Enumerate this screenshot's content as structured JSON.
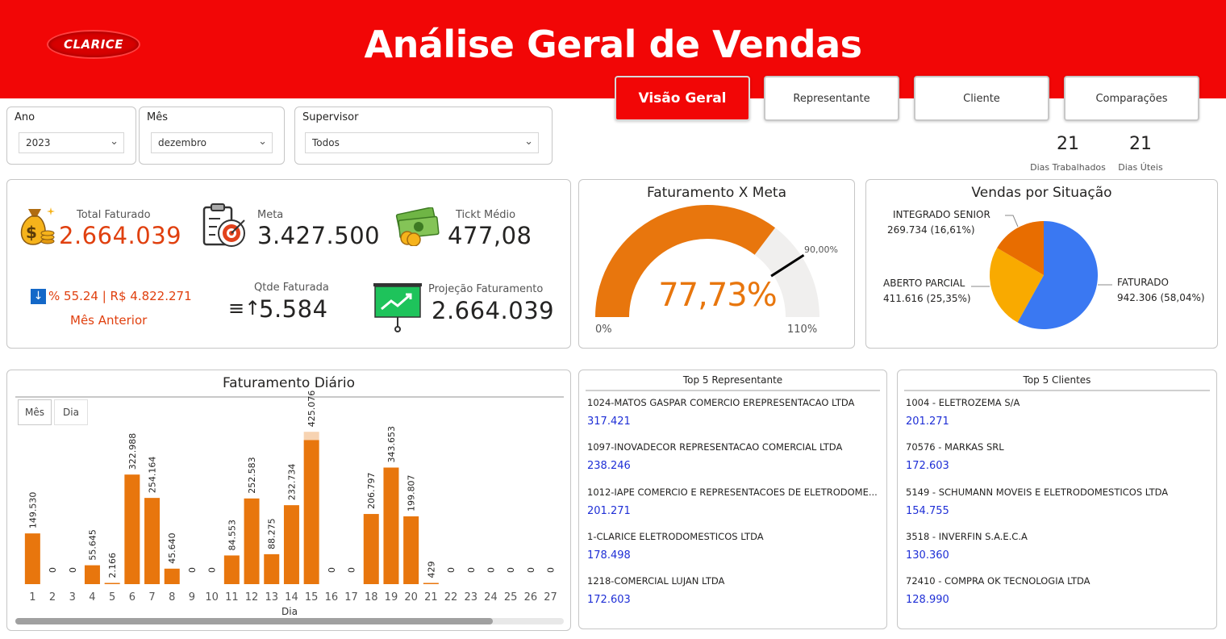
{
  "header": {
    "logo_text": "CLARICE",
    "title": "Análise Geral de Vendas"
  },
  "nav": {
    "visao_geral": "Visão Geral",
    "representante": "Representante",
    "cliente": "Cliente",
    "comparacoes": "Comparações"
  },
  "filters": {
    "ano": {
      "label": "Ano",
      "value": "2023"
    },
    "mes": {
      "label": "Mês",
      "value": "dezembro"
    },
    "supervisor": {
      "label": "Supervisor",
      "value": "Todos"
    }
  },
  "dias": {
    "trabalhados_value": "21",
    "trabalhados_label": "Dias Trabalhados",
    "uteis_value": "21",
    "uteis_label": "Dias Úteis"
  },
  "kpis": {
    "total_faturado_label": "Total Faturado",
    "total_faturado_value": "2.664.039",
    "meta_label": "Meta",
    "meta_value": "3.427.500",
    "ticket_label": "Tickt Médio",
    "ticket_value": "477,08",
    "mes_anterior_value": "% 55.24 | R$ 4.822.271",
    "mes_anterior_label": "Mês Anterior",
    "qtde_label": "Qtde Faturada",
    "qtde_value": "5.584",
    "projecao_label": "Projeção Faturamento",
    "projecao_value": "2.664.039"
  },
  "gauge": {
    "title": "Faturamento X Meta",
    "value_pct": 77.73,
    "value_label": "77,73%",
    "target_pct": 90,
    "target_label": "90,00%",
    "min_label": "0%",
    "max_label": "110%",
    "max": 110
  },
  "pie": {
    "title": "Vendas por Situação",
    "slices": [
      {
        "name": "FATURADO",
        "label": "942.306 (58,04%)",
        "value": 942306,
        "color": "#3a78f2"
      },
      {
        "name": "ABERTO PARCIAL",
        "label": "411.616 (25,35%)",
        "value": 411616,
        "color": "#f9aa00"
      },
      {
        "name": "INTEGRADO SENIOR",
        "label": "269.734 (16,61%)",
        "value": 269734,
        "color": "#e86d00"
      }
    ]
  },
  "daily": {
    "title": "Faturamento Diário",
    "btn_mes": "Mês",
    "btn_dia": "Dia",
    "xlabel": "Dia"
  },
  "chart_data": {
    "type": "bar",
    "title": "Faturamento Diário",
    "xlabel": "Dia",
    "ylabel": "",
    "categories": [
      "1",
      "2",
      "3",
      "4",
      "5",
      "6",
      "7",
      "8",
      "9",
      "10",
      "11",
      "12",
      "13",
      "14",
      "15",
      "16",
      "17",
      "18",
      "19",
      "20",
      "21",
      "22",
      "23",
      "24",
      "25",
      "26",
      "27"
    ],
    "values": [
      149530,
      0,
      0,
      55645,
      2166,
      322988,
      254164,
      45640,
      0,
      0,
      84553,
      252583,
      88275,
      232734,
      425076,
      0,
      0,
      206797,
      343653,
      199807,
      429,
      0,
      0,
      0,
      0,
      0,
      0
    ],
    "labels": [
      "149.530",
      "0",
      "0",
      "55.645",
      "2.166",
      "322.988",
      "254.164",
      "45.640",
      "0",
      "0",
      "84.553",
      "252.583",
      "88.275",
      "232.734",
      "425.076",
      "0",
      "0",
      "206.797",
      "343.653",
      "199.807",
      "429",
      "0",
      "0",
      "0",
      "0",
      "0",
      "0"
    ],
    "highlight_index": 14,
    "highlight_extra": 100000,
    "color": "#e8760d",
    "highlight_color": "#f7d3b2",
    "ylim": [
      0,
      440000
    ]
  },
  "top_rep": {
    "title": "Top 5 Representante",
    "items": [
      {
        "name": "1024-MATOS GASPAR COMERCIO EREPRESENTACAO LTDA",
        "value": "317.421"
      },
      {
        "name": "1097-INOVADECOR REPRESENTACAO COMERCIAL LTDA",
        "value": "238.246"
      },
      {
        "name": "1012-IAPE COMERCIO E REPRESENTACOES DE ELETRODOME...",
        "value": "201.271"
      },
      {
        "name": "1-CLARICE ELETRODOMESTICOS LTDA",
        "value": "178.498"
      },
      {
        "name": "1218-COMERCIAL LUJAN LTDA",
        "value": "172.603"
      }
    ]
  },
  "top_cli": {
    "title": "Top 5 Clientes",
    "items": [
      {
        "name": "1004 - ELETROZEMA S/A",
        "value": "201.271"
      },
      {
        "name": "70576 - MARKAS SRL",
        "value": "172.603"
      },
      {
        "name": "5149 - SCHUMANN MOVEIS E ELETRODOMESTICOS LTDA",
        "value": "154.755"
      },
      {
        "name": "3518 - INVERFIN S.A.E.C.A",
        "value": "130.360"
      },
      {
        "name": "72410 - COMPRA OK TECNOLOGIA LTDA",
        "value": "128.990"
      }
    ]
  }
}
